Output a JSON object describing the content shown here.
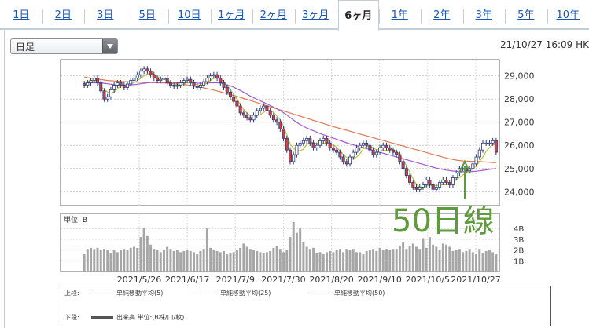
{
  "tabs": [
    {
      "label": "1日",
      "active": false
    },
    {
      "label": "2日",
      "active": false
    },
    {
      "label": "3日",
      "active": false
    },
    {
      "label": "5日",
      "active": false
    },
    {
      "label": "10日",
      "active": false
    },
    {
      "label": "1ヶ月",
      "active": false
    },
    {
      "label": "2ヶ月",
      "active": false
    },
    {
      "label": "3ヶ月",
      "active": false
    },
    {
      "label": "6ヶ月",
      "active": true
    },
    {
      "label": "1年",
      "active": false
    },
    {
      "label": "2年",
      "active": false
    },
    {
      "label": "3年",
      "active": false
    },
    {
      "label": "5年",
      "active": false
    },
    {
      "label": "10年",
      "active": false
    }
  ],
  "period_select": {
    "value": "日足"
  },
  "timestamp": "21/10/27 16:09 HK",
  "annotation": "50日線",
  "legend": {
    "upper_label": "上段:",
    "lower_label": "下段:",
    "ma5": "単純移動平均(5)",
    "ma25": "単純移動平均(25)",
    "ma50": "単純移動平均(50)",
    "volume": "出来高 単位:(B株/口/枚)"
  },
  "colors": {
    "ma5": "#b8c43a",
    "ma25": "#a25ad4",
    "ma50": "#e07a56",
    "up": "#ffffff",
    "down": "#e23a3a",
    "candle_outline": "#2a3a78",
    "volume_bar": "#a6a6a6",
    "annotation": "#5f9a3c",
    "link": "#1a56b8"
  },
  "chart_data": [
    {
      "type": "candlestick",
      "title": "",
      "ylim": [
        23400,
        29700
      ],
      "yticks": [
        24000,
        25000,
        26000,
        27000,
        28000,
        29000
      ],
      "ytick_labels": [
        "24,000",
        "25,000",
        "26,000",
        "27,000",
        "28,000",
        "29,000"
      ],
      "grid": true,
      "closes": [
        28600,
        28700,
        28800,
        28900,
        28700,
        28350,
        28000,
        28100,
        28400,
        28600,
        28700,
        28600,
        28500,
        28650,
        28800,
        28900,
        29050,
        29200,
        29300,
        29200,
        29050,
        28900,
        28800,
        28850,
        28900,
        28700,
        28600,
        28550,
        28600,
        28700,
        28800,
        28850,
        28700,
        28550,
        28500,
        28600,
        28750,
        28900,
        29000,
        29050,
        28900,
        28700,
        28500,
        28300,
        28100,
        27900,
        27700,
        27400,
        27300,
        27200,
        27100,
        27300,
        27500,
        27600,
        27700,
        27500,
        27300,
        27100,
        27000,
        26700,
        26300,
        25800,
        25300,
        25600,
        26000,
        26100,
        26200,
        26300,
        26100,
        25900,
        26000,
        26200,
        26300,
        26100,
        25900,
        25800,
        25700,
        25500,
        25300,
        25200,
        25500,
        25700,
        25900,
        26000,
        26100,
        26000,
        25800,
        25600,
        25700,
        25900,
        26000,
        25900,
        25800,
        25700,
        25600,
        25300,
        25000,
        24700,
        24400,
        24200,
        24100,
        24200,
        24300,
        24500,
        24300,
        24100,
        24200,
        24400,
        24500,
        24400,
        24300,
        24600,
        24800,
        25000,
        25000,
        24900,
        25000,
        25200,
        25500,
        25800,
        26100,
        26100,
        26100,
        26200,
        25700
      ],
      "ma5": [
        28700,
        28750,
        28800,
        28780,
        28700,
        28560,
        28400,
        28300,
        28280,
        28300,
        28450,
        28560,
        28600,
        28620,
        28660,
        28700,
        28800,
        28900,
        29000,
        29080,
        29100,
        29080,
        28960,
        28900,
        28860,
        28800,
        28730,
        28680,
        28620,
        28600,
        28650,
        28710,
        28700,
        28660,
        28620,
        28600,
        28620,
        28700,
        28800,
        28900,
        28900,
        28860,
        28760,
        28600,
        28400,
        28200,
        28000,
        27750,
        27550,
        27400,
        27280,
        27260,
        27280,
        27330,
        27420,
        27520,
        27490,
        27440,
        27260,
        27120,
        26820,
        26450,
        26050,
        25870,
        25780,
        25760,
        25840,
        26040,
        26140,
        26120,
        26080,
        26080,
        26100,
        26080,
        26080,
        26020,
        25920,
        25760,
        25600,
        25480,
        25400,
        25420,
        25500,
        25640,
        25840,
        25960,
        25960,
        25890,
        25820,
        25800,
        25780,
        25780,
        25820,
        25820,
        25740,
        25580,
        25380,
        25120,
        24840,
        24560,
        24320,
        24200,
        24200,
        24240,
        24280,
        24260,
        24260,
        24300,
        24300,
        24300,
        24340,
        24420,
        24520,
        24620,
        24720,
        24800,
        24900,
        25000,
        25120,
        25300,
        25500,
        25740,
        25900,
        26040,
        26000
      ],
      "ma25": [
        28700,
        28700,
        28700,
        28700,
        28700,
        28700,
        28680,
        28660,
        28640,
        28620,
        28610,
        28600,
        28600,
        28600,
        28610,
        28620,
        28640,
        28660,
        28680,
        28700,
        28710,
        28720,
        28720,
        28720,
        28720,
        28720,
        28720,
        28710,
        28700,
        28700,
        28700,
        28700,
        28700,
        28700,
        28690,
        28680,
        28680,
        28690,
        28700,
        28700,
        28700,
        28690,
        28660,
        28620,
        28570,
        28510,
        28440,
        28370,
        28290,
        28210,
        28130,
        28060,
        27990,
        27920,
        27860,
        27790,
        27720,
        27650,
        27580,
        27500,
        27410,
        27310,
        27200,
        27090,
        26990,
        26900,
        26820,
        26750,
        26690,
        26630,
        26570,
        26510,
        26460,
        26410,
        26360,
        26310,
        26260,
        26210,
        26160,
        26110,
        26060,
        26020,
        25980,
        25940,
        25900,
        25860,
        25820,
        25780,
        25740,
        25700,
        25660,
        25620,
        25580,
        25540,
        25500,
        25460,
        25420,
        25380,
        25340,
        25300,
        25260,
        25220,
        25180,
        25140,
        25100,
        25060,
        25020,
        24990,
        24960,
        24930,
        24910,
        24890,
        24880,
        24870,
        24860,
        24860,
        24860,
        24870,
        24880,
        24900,
        24920,
        24940,
        24960,
        24980,
        25000
      ],
      "ma50": [
        28950,
        28920,
        28900,
        28880,
        28860,
        28840,
        28820,
        28800,
        28790,
        28780,
        28770,
        28760,
        28750,
        28745,
        28740,
        28735,
        28730,
        28725,
        28720,
        28715,
        28710,
        28705,
        28700,
        28695,
        28690,
        28685,
        28680,
        28670,
        28660,
        28645,
        28630,
        28610,
        28590,
        28565,
        28540,
        28510,
        28480,
        28450,
        28420,
        28385,
        28350,
        28310,
        28270,
        28230,
        28190,
        28150,
        28110,
        28070,
        28025,
        27980,
        27935,
        27890,
        27845,
        27800,
        27755,
        27710,
        27665,
        27620,
        27575,
        27530,
        27485,
        27440,
        27395,
        27350,
        27305,
        27260,
        27215,
        27170,
        27125,
        27080,
        27035,
        26990,
        26945,
        26900,
        26855,
        26810,
        26770,
        26730,
        26690,
        26650,
        26610,
        26570,
        26530,
        26490,
        26450,
        26410,
        26370,
        26330,
        26290,
        26250,
        26210,
        26170,
        26130,
        26090,
        26050,
        26010,
        25970,
        25930,
        25890,
        25850,
        25810,
        25770,
        25730,
        25690,
        25650,
        25610,
        25570,
        25530,
        25490,
        25455,
        25420,
        25390,
        25365,
        25345,
        25330,
        25320,
        25315,
        25310,
        25305,
        25300,
        25290,
        25280,
        25270,
        25260,
        25250
      ]
    },
    {
      "type": "bar",
      "title": "",
      "ylabel": "単位: B",
      "ylim": [
        0,
        5.4
      ],
      "yticks": [
        1,
        2,
        3,
        4
      ],
      "ytick_labels": [
        "1B",
        "2B",
        "3B",
        "4B"
      ],
      "xtick_labels": [
        "2021/5/26",
        "2021/6/17",
        "2021/7/9",
        "2021/7/30",
        "2021/8/20",
        "2021/9/10",
        "2021/10/5",
        "2021/10/27"
      ],
      "values": [
        1.6,
        2.1,
        2.2,
        2.1,
        2.2,
        2.0,
        2.1,
        2.0,
        1.7,
        2.0,
        1.8,
        2.0,
        2.1,
        2.0,
        2.2,
        2.3,
        2.2,
        3.2,
        4.1,
        3.3,
        2.5,
        2.1,
        2.0,
        1.8,
        2.0,
        2.3,
        2.1,
        1.9,
        2.0,
        1.8,
        1.9,
        2.0,
        1.9,
        1.8,
        1.6,
        1.9,
        2.1,
        4.0,
        2.2,
        2.0,
        1.9,
        1.8,
        1.9,
        1.6,
        1.7,
        1.8,
        2.0,
        2.2,
        2.6,
        2.3,
        2.1,
        2.0,
        1.9,
        1.8,
        1.7,
        1.8,
        1.9,
        2.2,
        2.4,
        2.1,
        1.8,
        2.0,
        3.2,
        4.6,
        3.6,
        4.0,
        2.7,
        2.3,
        2.1,
        2.2,
        1.7,
        1.8,
        1.6,
        1.8,
        1.9,
        1.8,
        2.0,
        2.1,
        1.8,
        2.1,
        2.0,
        2.1,
        1.8,
        1.8,
        1.6,
        1.9,
        2.0,
        2.1,
        1.9,
        2.2,
        2.0,
        2.1,
        2.0,
        2.1,
        2.1,
        2.4,
        2.7,
        2.1,
        2.4,
        2.6,
        2.3,
        2.1,
        3.1,
        2.2,
        3.2,
        2.5,
        2.3,
        2.0,
        2.6,
        2.5,
        2.3,
        1.9,
        2.0,
        2.1,
        1.8,
        1.9,
        2.1,
        1.8,
        1.6,
        2.1,
        1.7,
        1.9,
        2.0,
        1.8,
        1.6
      ]
    }
  ]
}
